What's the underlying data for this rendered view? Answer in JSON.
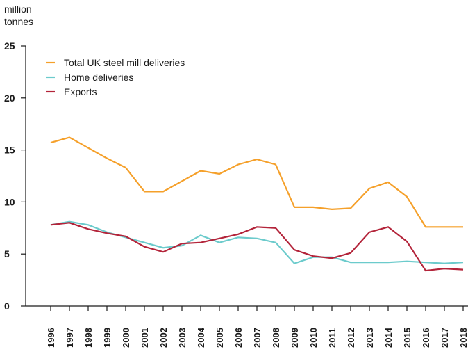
{
  "chart_data": {
    "type": "line",
    "ylabel_lines": [
      "million",
      "tonnes"
    ],
    "ylim": [
      0,
      25
    ],
    "yticks": [
      0,
      5,
      10,
      15,
      20,
      25
    ],
    "grid": false,
    "legend_position": "top-left",
    "x": [
      "1996",
      "1997",
      "1998",
      "1999",
      "2000",
      "2001",
      "2002",
      "2003",
      "2004",
      "2005",
      "2006",
      "2007",
      "2008",
      "2009",
      "2010",
      "2011",
      "2012",
      "2013",
      "2014",
      "2015",
      "2016",
      "2017",
      "2018"
    ],
    "series": [
      {
        "name": "Total UK steel mill deliveries",
        "color": "#f5a02a",
        "values": [
          15.7,
          16.2,
          15.2,
          14.2,
          13.3,
          11.0,
          11.0,
          12.0,
          13.0,
          12.7,
          13.6,
          14.1,
          13.6,
          9.5,
          9.5,
          9.3,
          9.4,
          11.3,
          11.9,
          10.5,
          7.6,
          7.6,
          7.6
        ]
      },
      {
        "name": "Home deliveries",
        "color": "#6ccbcc",
        "values": [
          7.8,
          8.1,
          7.8,
          7.1,
          6.6,
          6.1,
          5.6,
          5.8,
          6.8,
          6.1,
          6.6,
          6.5,
          6.1,
          4.1,
          4.7,
          4.7,
          4.2,
          4.2,
          4.2,
          4.3,
          4.2,
          4.1,
          4.2
        ]
      },
      {
        "name": "Exports",
        "color": "#b3243a",
        "values": [
          7.8,
          8.0,
          7.4,
          7.0,
          6.7,
          5.7,
          5.2,
          6.0,
          6.1,
          6.5,
          6.9,
          7.6,
          7.5,
          5.4,
          4.8,
          4.6,
          5.1,
          7.1,
          7.6,
          6.2,
          3.4,
          3.6,
          3.5
        ]
      }
    ]
  }
}
